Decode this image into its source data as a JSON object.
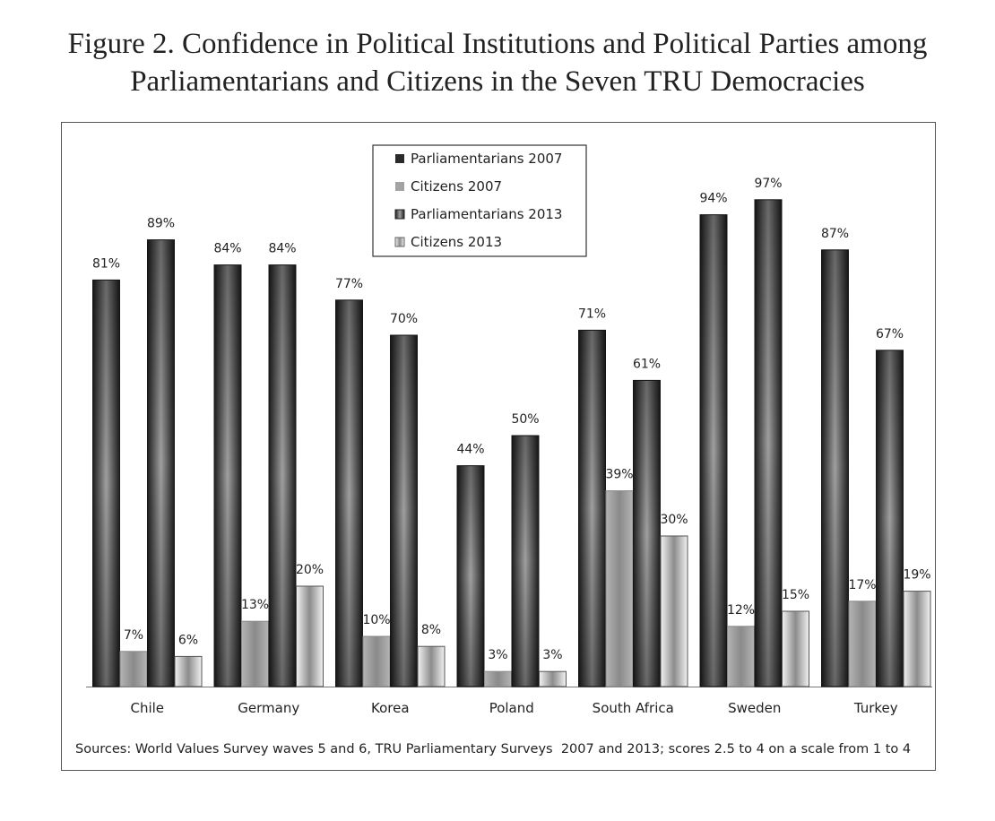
{
  "title_line1": "Figure 2. Confidence in Political Institutions and Political Parties among",
  "title_line2": "Parliamentarians and Citizens in the Seven TRU Democracies",
  "chart_data": {
    "type": "bar",
    "categories": [
      "Chile",
      "Germany",
      "Korea",
      "Poland",
      "South Africa",
      "Sweden",
      "Turkey"
    ],
    "series": [
      {
        "name": "Parliamentarians 2007",
        "values": [
          81,
          84,
          77,
          44,
          71,
          94,
          87
        ],
        "labels": [
          "81%",
          "84%",
          "77%",
          "44%",
          "71%",
          "94%",
          "87%"
        ]
      },
      {
        "name": "Citizens 2007",
        "values": [
          7,
          13,
          10,
          3,
          39,
          12,
          17
        ],
        "labels": [
          "7%",
          "13%",
          "10%",
          "3%",
          "39%",
          "12%",
          "17%"
        ]
      },
      {
        "name": "Parliamentarians 2013",
        "values": [
          89,
          84,
          70,
          50,
          61,
          97,
          67
        ],
        "labels": [
          "89%",
          "84%",
          "70%",
          "50%",
          "61%",
          "97%",
          "67%"
        ]
      },
      {
        "name": "Citizens 2013",
        "values": [
          6,
          20,
          8,
          3,
          30,
          15,
          19
        ],
        "labels": [
          "6%",
          "20%",
          "8%",
          "3%",
          "30%",
          "15%",
          "19%"
        ]
      }
    ],
    "ylim": [
      0,
      100
    ],
    "grid": false,
    "legend": "top-center",
    "colors": {
      "parliamentarians": "#2c2c2c",
      "citizens": "#a8a8a8"
    },
    "source_note": "Sources: World Values Survey waves 5 and 6, TRU Parliamentary Surveys  2007 and 2013; scores 2.5 to 4 on a scale from 1 to 4"
  }
}
